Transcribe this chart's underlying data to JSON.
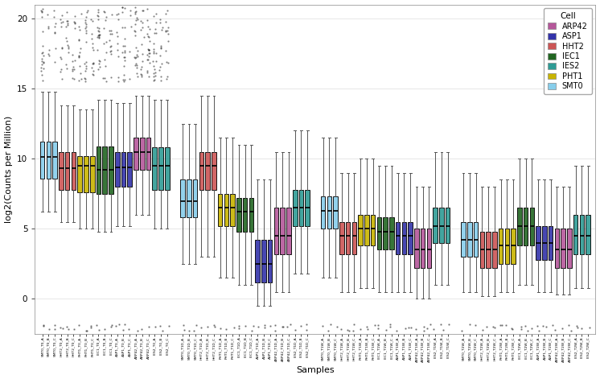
{
  "cell_colors": {
    "ARP42": "#B5579A",
    "ASP1": "#3333AA",
    "HHT2": "#CC5555",
    "IEC1": "#226622",
    "IES2": "#2E9B95",
    "PHT1": "#C8B400",
    "SMT0": "#87CEEB"
  },
  "legend_order": [
    "ARP42",
    "ASP1",
    "HHT2",
    "IEC1",
    "IES2",
    "PHT1",
    "SMT0"
  ],
  "ylabel": "log2(Counts per Million)",
  "xlabel": "Samples",
  "ylim": [
    -2.5,
    21
  ],
  "yticks": [
    0,
    5,
    10,
    15,
    20
  ],
  "background_color": "#FFFFFF",
  "grid_color": "#DDDDDD",
  "box_stats": {
    "SMT0_T0": {
      "med": 10.1,
      "q1": 8.6,
      "q3": 11.2,
      "whislo": 6.2,
      "whishi": 14.8
    },
    "HHT2_T0": {
      "med": 9.3,
      "q1": 7.8,
      "q3": 10.5,
      "whislo": 5.5,
      "whishi": 13.8
    },
    "PHT1_T0": {
      "med": 9.5,
      "q1": 7.6,
      "q3": 10.2,
      "whislo": 5.0,
      "whishi": 13.5
    },
    "IEC1_T0": {
      "med": 9.2,
      "q1": 7.5,
      "q3": 10.9,
      "whislo": 4.8,
      "whishi": 14.2
    },
    "ASP1_T0": {
      "med": 9.4,
      "q1": 8.0,
      "q3": 10.5,
      "whislo": 5.2,
      "whishi": 14.0
    },
    "ARP42_T0": {
      "med": 10.5,
      "q1": 9.2,
      "q3": 11.5,
      "whislo": 6.0,
      "whishi": 14.5
    },
    "IES2_T0": {
      "med": 9.5,
      "q1": 7.8,
      "q3": 10.8,
      "whislo": 5.0,
      "whishi": 14.2
    },
    "SMT0_T1D": {
      "med": 7.0,
      "q1": 5.8,
      "q3": 8.5,
      "whislo": 2.5,
      "whishi": 12.5
    },
    "HHT2_T1D": {
      "med": 9.5,
      "q1": 7.8,
      "q3": 10.5,
      "whislo": 3.0,
      "whishi": 14.5
    },
    "PHT1_T1D": {
      "med": 6.5,
      "q1": 5.2,
      "q3": 7.5,
      "whislo": 1.5,
      "whishi": 11.5
    },
    "IEC1_T1D": {
      "med": 6.2,
      "q1": 4.8,
      "q3": 7.2,
      "whislo": 1.0,
      "whishi": 11.0
    },
    "ASP1_T1D": {
      "med": 2.5,
      "q1": 1.2,
      "q3": 4.2,
      "whislo": -0.5,
      "whishi": 8.5
    },
    "ARP42_T1D": {
      "med": 4.5,
      "q1": 3.2,
      "q3": 6.5,
      "whislo": 0.5,
      "whishi": 10.5
    },
    "IES2_T1D": {
      "med": 6.5,
      "q1": 5.2,
      "q3": 7.8,
      "whislo": 1.8,
      "whishi": 12.0
    },
    "IES2_T1W_pre": {
      "med": 6.5,
      "q1": 5.2,
      "q3": 7.8,
      "whislo": 1.8,
      "whishi": 12.0
    },
    "SMT0_T1W": {
      "med": 6.3,
      "q1": 5.0,
      "q3": 7.3,
      "whislo": 1.5,
      "whishi": 11.5
    },
    "HHT2_T1W": {
      "med": 4.5,
      "q1": 3.2,
      "q3": 5.5,
      "whislo": 0.5,
      "whishi": 9.0
    },
    "PHT1_T1W": {
      "med": 5.0,
      "q1": 3.8,
      "q3": 6.0,
      "whislo": 0.8,
      "whishi": 10.0
    },
    "IEC1_T1W": {
      "med": 4.8,
      "q1": 3.5,
      "q3": 5.8,
      "whislo": 0.5,
      "whishi": 9.5
    },
    "ASP1_T1W": {
      "med": 4.5,
      "q1": 3.2,
      "q3": 5.5,
      "whislo": 0.5,
      "whishi": 9.0
    },
    "ARP42_T1W": {
      "med": 3.5,
      "q1": 2.2,
      "q3": 5.0,
      "whislo": 0.0,
      "whishi": 8.0
    },
    "IES2_T1W": {
      "med": 5.2,
      "q1": 4.0,
      "q3": 6.5,
      "whislo": 1.0,
      "whishi": 10.5
    },
    "SMT0_T2W": {
      "med": 4.2,
      "q1": 3.0,
      "q3": 5.5,
      "whislo": 0.5,
      "whishi": 9.0
    },
    "HHT2_T2W": {
      "med": 3.5,
      "q1": 2.2,
      "q3": 4.8,
      "whislo": 0.2,
      "whishi": 8.0
    },
    "PHT1_T2W": {
      "med": 3.8,
      "q1": 2.5,
      "q3": 5.0,
      "whislo": 0.5,
      "whishi": 8.5
    },
    "IEC1_T2W": {
      "med": 5.2,
      "q1": 3.8,
      "q3": 6.5,
      "whislo": 1.0,
      "whishi": 10.0
    },
    "ASP1_T2W": {
      "med": 4.0,
      "q1": 2.8,
      "q3": 5.2,
      "whislo": 0.5,
      "whishi": 8.5
    },
    "ARP42_T2W": {
      "med": 3.5,
      "q1": 2.2,
      "q3": 5.0,
      "whislo": 0.3,
      "whishi": 8.0
    },
    "IES2_T2W": {
      "med": 4.5,
      "q1": 3.2,
      "q3": 6.0,
      "whislo": 0.8,
      "whishi": 9.5
    }
  }
}
